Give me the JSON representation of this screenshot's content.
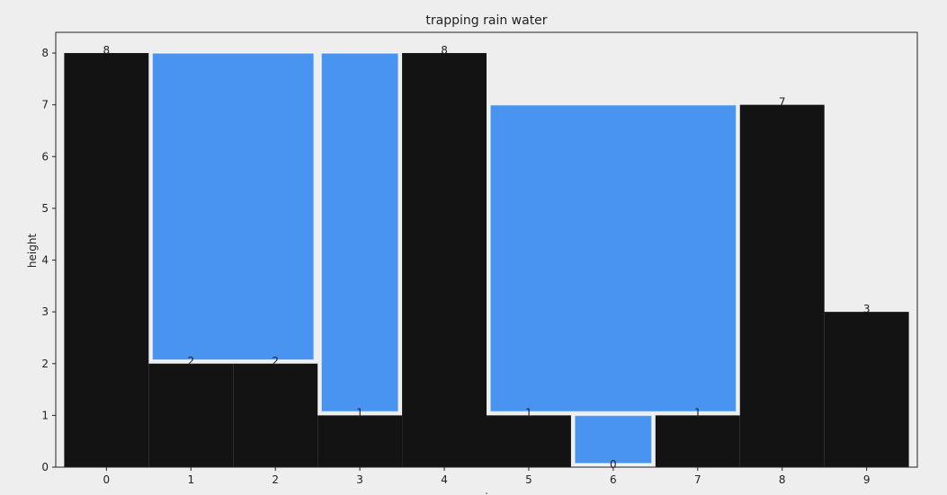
{
  "chart_data": {
    "type": "bar",
    "title": "trapping rain water",
    "xlabel": "i",
    "ylabel": "height",
    "categories": [
      "0",
      "1",
      "2",
      "3",
      "4",
      "5",
      "6",
      "7",
      "8",
      "9"
    ],
    "heights": [
      8,
      2,
      2,
      1,
      8,
      1,
      0,
      1,
      7,
      3
    ],
    "value_labels": [
      "8",
      "2",
      "2",
      "1",
      "8",
      "1",
      "0",
      "1",
      "7",
      "3"
    ],
    "water_regions": [
      {
        "from": 1,
        "to": 2,
        "bottom": 2,
        "top": 8
      },
      {
        "from": 3,
        "to": 3,
        "bottom": 1,
        "top": 8
      },
      {
        "from": 5,
        "to": 7,
        "bottom": 1,
        "top": 7
      },
      {
        "from": 6,
        "to": 6,
        "bottom": 0,
        "top": 1
      }
    ],
    "ylim": [
      0,
      8.4
    ],
    "yticks": [
      "0",
      "1",
      "2",
      "3",
      "4",
      "5",
      "6",
      "7",
      "8"
    ],
    "grid": false,
    "colors": {
      "bar": "#131313",
      "water": "#4894f0",
      "background": "#eeeeee",
      "axes": "#222222"
    }
  }
}
